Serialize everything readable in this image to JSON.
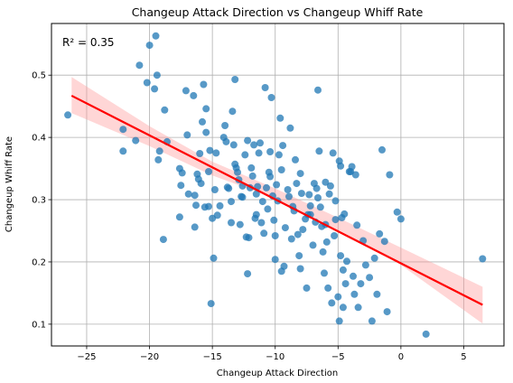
{
  "chart_data": {
    "type": "scatter",
    "title": "Changeup Attack Direction vs Changeup Whiff Rate",
    "xlabel": "Changeup Attack Direction",
    "ylabel": "Changeup Whiff Rate",
    "annotation": "R² = 0.35",
    "xlim": [
      -27.8,
      8.2
    ],
    "ylim": [
      0.065,
      0.583
    ],
    "xticks": [
      -25,
      -20,
      -15,
      -10,
      -5,
      0,
      5
    ],
    "yticks": [
      0.1,
      0.2,
      0.3,
      0.4,
      0.5
    ],
    "xtick_labels": [
      "−25",
      "−20",
      "−15",
      "−10",
      "−5",
      "0",
      "5"
    ],
    "ytick_labels": [
      "0.1",
      "0.2",
      "0.3",
      "0.4",
      "0.5"
    ],
    "grid": true,
    "colors": {
      "points": "#1f77b4",
      "regression_line": "#ff0000",
      "confidence_band": "#ff9999",
      "grid": "#b0b0b0"
    },
    "regression": {
      "x": [
        -26.2,
        6.5
      ],
      "y": [
        0.467,
        0.131
      ],
      "band_x": [
        -26.2,
        -20,
        -15,
        -10,
        -5,
        0,
        6.5
      ],
      "band_upper": [
        0.497,
        0.418,
        0.361,
        0.318,
        0.271,
        0.223,
        0.16
      ],
      "band_lower": [
        0.439,
        0.386,
        0.339,
        0.302,
        0.251,
        0.195,
        0.101
      ]
    },
    "series": [
      {
        "points": [
          [
            -26.5,
            0.436
          ],
          [
            -22.1,
            0.378
          ],
          [
            -22.1,
            0.413
          ],
          [
            -21.1,
            0.395
          ],
          [
            -20.8,
            0.516
          ],
          [
            -20.2,
            0.488
          ],
          [
            -20.0,
            0.548
          ],
          [
            -19.6,
            0.478
          ],
          [
            -19.5,
            0.563
          ],
          [
            -19.4,
            0.5
          ],
          [
            -19.3,
            0.364
          ],
          [
            -19.2,
            0.378
          ],
          [
            -18.9,
            0.236
          ],
          [
            -18.8,
            0.444
          ],
          [
            -18.6,
            0.393
          ],
          [
            -17.6,
            0.272
          ],
          [
            -17.6,
            0.35
          ],
          [
            -17.5,
            0.323
          ],
          [
            -17.4,
            0.343
          ],
          [
            -17.1,
            0.475
          ],
          [
            -17.0,
            0.404
          ],
          [
            -16.9,
            0.309
          ],
          [
            -16.5,
            0.467
          ],
          [
            -16.4,
            0.256
          ],
          [
            -16.4,
            0.307
          ],
          [
            -16.3,
            0.291
          ],
          [
            -16.2,
            0.341
          ],
          [
            -16.1,
            0.333
          ],
          [
            -16.0,
            0.374
          ],
          [
            -15.9,
            0.326
          ],
          [
            -15.8,
            0.425
          ],
          [
            -15.7,
            0.485
          ],
          [
            -15.6,
            0.288
          ],
          [
            -15.5,
            0.408
          ],
          [
            -15.5,
            0.446
          ],
          [
            -15.3,
            0.289
          ],
          [
            -15.3,
            0.345
          ],
          [
            -15.2,
            0.379
          ],
          [
            -15.1,
            0.133
          ],
          [
            -15.0,
            0.27
          ],
          [
            -14.9,
            0.206
          ],
          [
            -14.8,
            0.316
          ],
          [
            -14.7,
            0.375
          ],
          [
            -14.6,
            0.275
          ],
          [
            -14.4,
            0.29
          ],
          [
            -14.1,
            0.4
          ],
          [
            -14.0,
            0.419
          ],
          [
            -13.9,
            0.393
          ],
          [
            -13.8,
            0.32
          ],
          [
            -13.7,
            0.318
          ],
          [
            -13.5,
            0.263
          ],
          [
            -13.5,
            0.297
          ],
          [
            -13.4,
            0.442
          ],
          [
            -13.3,
            0.388
          ],
          [
            -13.2,
            0.357
          ],
          [
            -13.2,
            0.493
          ],
          [
            -13.1,
            0.351
          ],
          [
            -13.0,
            0.344
          ],
          [
            -12.9,
            0.332
          ],
          [
            -12.8,
            0.26
          ],
          [
            -12.7,
            0.305
          ],
          [
            -12.6,
            0.304
          ],
          [
            -12.6,
            0.322
          ],
          [
            -12.4,
            0.372
          ],
          [
            -12.3,
            0.24
          ],
          [
            -12.2,
            0.181
          ],
          [
            -12.2,
            0.395
          ],
          [
            -12.1,
            0.239
          ],
          [
            -12.0,
            0.319
          ],
          [
            -11.9,
            0.351
          ],
          [
            -11.8,
            0.338
          ],
          [
            -11.7,
            0.388
          ],
          [
            -11.6,
            0.27
          ],
          [
            -11.5,
            0.276
          ],
          [
            -11.5,
            0.309
          ],
          [
            -11.4,
            0.321
          ],
          [
            -11.3,
            0.375
          ],
          [
            -11.2,
            0.391
          ],
          [
            -11.1,
            0.263
          ],
          [
            -11.0,
            0.297
          ],
          [
            -10.9,
            0.246
          ],
          [
            -10.8,
            0.48
          ],
          [
            -10.7,
            0.319
          ],
          [
            -10.6,
            0.285
          ],
          [
            -10.5,
            0.344
          ],
          [
            -10.4,
            0.337
          ],
          [
            -10.4,
            0.377
          ],
          [
            -10.3,
            0.464
          ],
          [
            -10.2,
            0.306
          ],
          [
            -10.1,
            0.267
          ],
          [
            -10.0,
            0.204
          ],
          [
            -10.0,
            0.242
          ],
          [
            -9.9,
            0.324
          ],
          [
            -9.8,
            0.298
          ],
          [
            -9.7,
            0.372
          ],
          [
            -9.6,
            0.431
          ],
          [
            -9.5,
            0.185
          ],
          [
            -9.5,
            0.348
          ],
          [
            -9.4,
            0.387
          ],
          [
            -9.3,
            0.193
          ],
          [
            -9.2,
            0.255
          ],
          [
            -9.0,
            0.316
          ],
          [
            -8.9,
            0.305
          ],
          [
            -8.8,
            0.415
          ],
          [
            -8.7,
            0.237
          ],
          [
            -8.6,
            0.289
          ],
          [
            -8.5,
            0.282
          ],
          [
            -8.4,
            0.364
          ],
          [
            -8.3,
            0.326
          ],
          [
            -8.2,
            0.244
          ],
          [
            -8.1,
            0.21
          ],
          [
            -8.0,
            0.189
          ],
          [
            -8.0,
            0.342
          ],
          [
            -7.9,
            0.31
          ],
          [
            -7.8,
            0.252
          ],
          [
            -7.6,
            0.269
          ],
          [
            -7.5,
            0.158
          ],
          [
            -7.4,
            0.276
          ],
          [
            -7.3,
            0.308
          ],
          [
            -7.2,
            0.276
          ],
          [
            -7.2,
            0.29
          ],
          [
            -7.0,
            0.227
          ],
          [
            -6.9,
            0.326
          ],
          [
            -6.8,
            0.264
          ],
          [
            -6.7,
            0.318
          ],
          [
            -6.6,
            0.303
          ],
          [
            -6.6,
            0.476
          ],
          [
            -6.5,
            0.378
          ],
          [
            -6.4,
            0.288
          ],
          [
            -6.3,
            0.257
          ],
          [
            -6.2,
            0.216
          ],
          [
            -6.1,
            0.182
          ],
          [
            -6.0,
            0.328
          ],
          [
            -6.0,
            0.26
          ],
          [
            -5.9,
            0.232
          ],
          [
            -5.8,
            0.158
          ],
          [
            -5.7,
            0.309
          ],
          [
            -5.6,
            0.322
          ],
          [
            -5.5,
            0.134
          ],
          [
            -5.4,
            0.375
          ],
          [
            -5.3,
            0.242
          ],
          [
            -5.2,
            0.298
          ],
          [
            -5.2,
            0.268
          ],
          [
            -5.0,
            0.144
          ],
          [
            -4.9,
            0.105
          ],
          [
            -4.9,
            0.362
          ],
          [
            -4.8,
            0.354
          ],
          [
            -4.8,
            0.21
          ],
          [
            -4.7,
            0.271
          ],
          [
            -4.6,
            0.187
          ],
          [
            -4.6,
            0.127
          ],
          [
            -4.5,
            0.277
          ],
          [
            -4.4,
            0.165
          ],
          [
            -4.3,
            0.201
          ],
          [
            -4.1,
            0.345
          ],
          [
            -4.0,
            0.345
          ],
          [
            -3.9,
            0.353
          ],
          [
            -3.8,
            0.177
          ],
          [
            -3.7,
            0.148
          ],
          [
            -3.6,
            0.34
          ],
          [
            -3.5,
            0.259
          ],
          [
            -3.4,
            0.127
          ],
          [
            -3.2,
            0.165
          ],
          [
            -3.0,
            0.234
          ],
          [
            -2.8,
            0.195
          ],
          [
            -2.5,
            0.175
          ],
          [
            -2.3,
            0.105
          ],
          [
            -2.1,
            0.206
          ],
          [
            -1.9,
            0.148
          ],
          [
            -1.7,
            0.245
          ],
          [
            -1.5,
            0.38
          ],
          [
            -1.3,
            0.233
          ],
          [
            -1.1,
            0.12
          ],
          [
            -0.9,
            0.34
          ],
          [
            -0.3,
            0.28
          ],
          [
            0.0,
            0.269
          ],
          [
            2.0,
            0.084
          ],
          [
            6.5,
            0.205
          ]
        ]
      }
    ]
  }
}
